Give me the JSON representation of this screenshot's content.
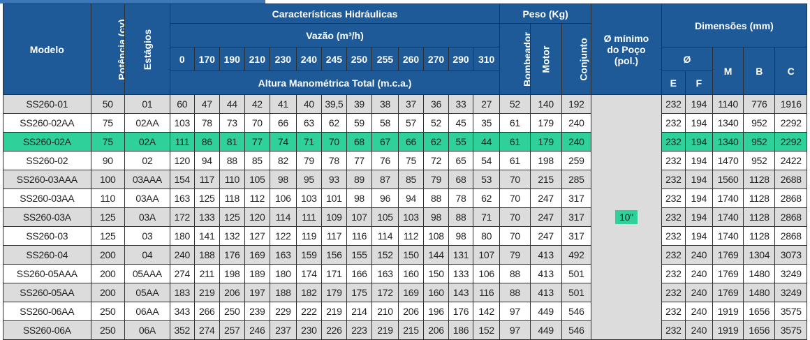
{
  "header": {
    "model": "Modelo",
    "power": "Potência (cv)",
    "stages": "Estágios",
    "hydraulic": "Características Hidráulicas",
    "flow": "Vazão (m³/h)",
    "flow_values": [
      "0",
      "170",
      "190",
      "210",
      "230",
      "240",
      "245",
      "250",
      "255",
      "260",
      "270",
      "290",
      "310"
    ],
    "head": "Altura Manométrica Total (m.c.a.)",
    "weight": "Peso (Kg)",
    "pump": "Bombeador",
    "motor": "Motor",
    "set": "Conjunto",
    "well_line1": "Ø mínimo",
    "well_line2": "do Poço",
    "well_line3": "(pol.)",
    "dims": "Dimensões (mm)",
    "phi": "Ø",
    "E": "E",
    "F": "F",
    "M": "M",
    "B": "B",
    "C": "C"
  },
  "well_value": "10\"",
  "highlight_color": "#2fd09a",
  "rows": [
    {
      "model": "SS260-01",
      "power": "50",
      "stages": "01",
      "head": [
        "60",
        "47",
        "44",
        "42",
        "41",
        "40",
        "39,5",
        "39",
        "38",
        "37",
        "36",
        "33",
        "27"
      ],
      "pump": "52",
      "motor": "140",
      "set": "192",
      "E": "232",
      "F": "194",
      "M": "1140",
      "B": "776",
      "C": "1916"
    },
    {
      "model": "SS260-02AA",
      "power": "75",
      "stages": "02AA",
      "head": [
        "103",
        "78",
        "73",
        "70",
        "66",
        "63",
        "62",
        "59",
        "58",
        "57",
        "52",
        "45",
        "35"
      ],
      "pump": "61",
      "motor": "179",
      "set": "240",
      "E": "232",
      "F": "194",
      "M": "1340",
      "B": "952",
      "C": "2292"
    },
    {
      "model": "SS260-02A",
      "power": "75",
      "stages": "02A",
      "head": [
        "111",
        "86",
        "81",
        "77",
        "74",
        "71",
        "70",
        "68",
        "67",
        "66",
        "62",
        "55",
        "44"
      ],
      "pump": "61",
      "motor": "179",
      "set": "240",
      "E": "232",
      "F": "194",
      "M": "1340",
      "B": "952",
      "C": "2292"
    },
    {
      "model": "SS260-02",
      "power": "90",
      "stages": "02",
      "head": [
        "120",
        "94",
        "88",
        "85",
        "82",
        "79",
        "78",
        "77",
        "76",
        "75",
        "72",
        "65",
        "54"
      ],
      "pump": "61",
      "motor": "198",
      "set": "259",
      "E": "232",
      "F": "194",
      "M": "1470",
      "B": "952",
      "C": "2422"
    },
    {
      "model": "SS260-03AAA",
      "power": "100",
      "stages": "03AAA",
      "head": [
        "154",
        "117",
        "110",
        "105",
        "98",
        "95",
        "93",
        "89",
        "87",
        "85",
        "79",
        "68",
        "53"
      ],
      "pump": "70",
      "motor": "215",
      "set": "285",
      "E": "232",
      "F": "194",
      "M": "1560",
      "B": "1128",
      "C": "2688"
    },
    {
      "model": "SS260-03AA",
      "power": "110",
      "stages": "03AA",
      "head": [
        "163",
        "125",
        "118",
        "112",
        "106",
        "103",
        "101",
        "98",
        "96",
        "94",
        "88",
        "78",
        "62"
      ],
      "pump": "70",
      "motor": "247",
      "set": "317",
      "E": "232",
      "F": "194",
      "M": "1740",
      "B": "1128",
      "C": "2868"
    },
    {
      "model": "SS260-03A",
      "power": "125",
      "stages": "03A",
      "head": [
        "172",
        "133",
        "125",
        "120",
        "114",
        "111",
        "109",
        "107",
        "105",
        "103",
        "98",
        "88",
        "71"
      ],
      "pump": "70",
      "motor": "247",
      "set": "317",
      "E": "232",
      "F": "194",
      "M": "1740",
      "B": "1128",
      "C": "2868"
    },
    {
      "model": "SS260-03",
      "power": "125",
      "stages": "03",
      "head": [
        "180",
        "141",
        "132",
        "127",
        "122",
        "119",
        "117",
        "116",
        "114",
        "112",
        "108",
        "98",
        "80"
      ],
      "pump": "70",
      "motor": "247",
      "set": "317",
      "E": "232",
      "F": "194",
      "M": "1740",
      "B": "1128",
      "C": "2868"
    },
    {
      "model": "SS260-04",
      "power": "200",
      "stages": "04",
      "head": [
        "240",
        "188",
        "176",
        "169",
        "163",
        "159",
        "156",
        "155",
        "152",
        "150",
        "144",
        "131",
        "107"
      ],
      "pump": "79",
      "motor": "413",
      "set": "492",
      "E": "232",
      "F": "240",
      "M": "1769",
      "B": "1304",
      "C": "3073"
    },
    {
      "model": "SS260-05AAA",
      "power": "200",
      "stages": "05AAA",
      "head": [
        "274",
        "211",
        "198",
        "189",
        "180",
        "174",
        "171",
        "166",
        "163",
        "160",
        "150",
        "133",
        "106"
      ],
      "pump": "88",
      "motor": "413",
      "set": "501",
      "E": "232",
      "F": "240",
      "M": "1769",
      "B": "1480",
      "C": "3249"
    },
    {
      "model": "SS260-05AA",
      "power": "200",
      "stages": "05AA",
      "head": [
        "183",
        "219",
        "206",
        "197",
        "188",
        "182",
        "179",
        "175",
        "172",
        "169",
        "160",
        "143",
        "116"
      ],
      "pump": "88",
      "motor": "413",
      "set": "501",
      "E": "232",
      "F": "240",
      "M": "1769",
      "B": "1480",
      "C": "3249"
    },
    {
      "model": "SS260-06AA",
      "power": "250",
      "stages": "06AA",
      "head": [
        "343",
        "266",
        "250",
        "239",
        "229",
        "222",
        "219",
        "214",
        "210",
        "206",
        "196",
        "176",
        "142"
      ],
      "pump": "97",
      "motor": "449",
      "set": "546",
      "E": "232",
      "F": "240",
      "M": "1919",
      "B": "1656",
      "C": "3575"
    },
    {
      "model": "SS260-06A",
      "power": "250",
      "stages": "06A",
      "head": [
        "352",
        "274",
        "257",
        "246",
        "237",
        "230",
        "226",
        "223",
        "219",
        "215",
        "206",
        "186",
        "152"
      ],
      "pump": "97",
      "motor": "449",
      "set": "546",
      "E": "232",
      "F": "240",
      "M": "1919",
      "B": "1656",
      "C": "3575"
    }
  ]
}
